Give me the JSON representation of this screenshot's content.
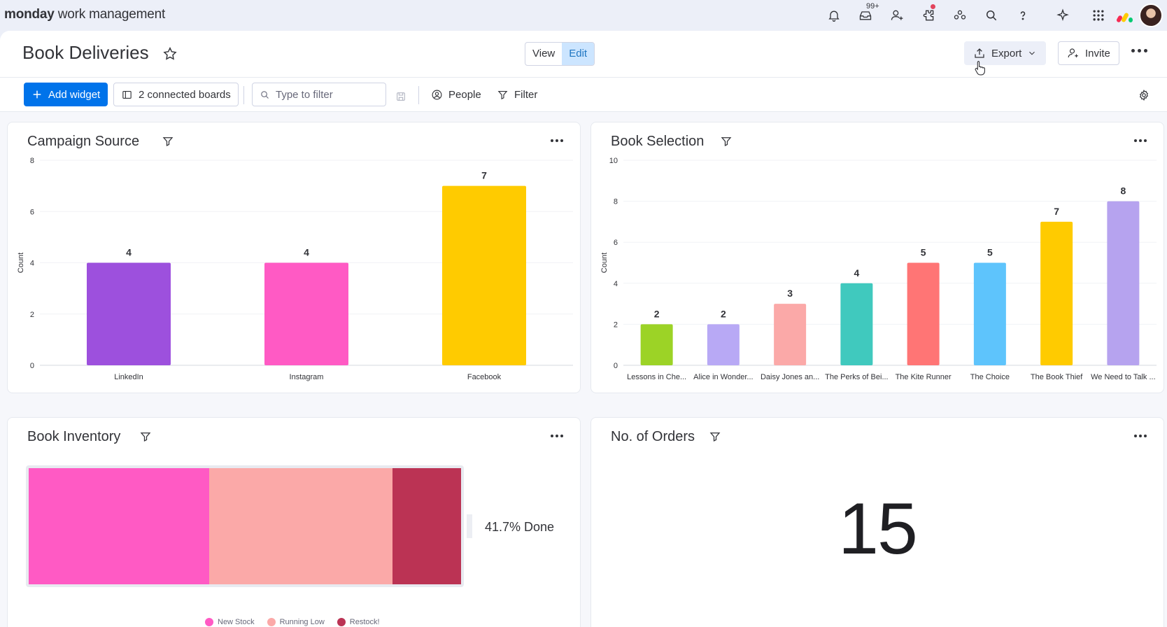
{
  "app": {
    "logo_bold": "monday",
    "logo_rest": " work management",
    "notifications_badge": "99+"
  },
  "header": {
    "title": "Book Deliveries",
    "view_label": "View",
    "edit_label": "Edit",
    "export_label": "Export",
    "invite_label": "Invite"
  },
  "toolbar": {
    "add_widget_label": "Add widget",
    "connected_boards_label": "2 connected boards",
    "filter_placeholder": "Type to filter",
    "people_label": "People",
    "filter_label": "Filter"
  },
  "widgets": {
    "campaign_source": {
      "title": "Campaign Source"
    },
    "book_selection": {
      "title": "Book Selection"
    },
    "book_inventory": {
      "title": "Book Inventory",
      "done_text": "41.7% Done",
      "segments": [
        {
          "label": "New Stock",
          "fraction": 0.417,
          "color": "#ff5ac4"
        },
        {
          "label": "Running Low",
          "fraction": 0.425,
          "color": "#fba9a8"
        },
        {
          "label": "Restock!",
          "fraction": 0.158,
          "color": "#bb3354"
        }
      ]
    },
    "orders": {
      "title": "No. of Orders",
      "value": "15"
    }
  },
  "chart_data": [
    {
      "id": "campaign_source",
      "type": "bar",
      "title": "Campaign Source",
      "ylabel": "Count",
      "ylim": [
        0,
        8
      ],
      "yticks": [
        0,
        2,
        4,
        6,
        8
      ],
      "categories": [
        "LinkedIn",
        "Instagram",
        "Facebook"
      ],
      "values": [
        4,
        4,
        7
      ],
      "colors": [
        "#9d50dd",
        "#ff5ac4",
        "#ffcb00"
      ]
    },
    {
      "id": "book_selection",
      "type": "bar",
      "title": "Book Selection",
      "ylabel": "Count",
      "ylim": [
        0,
        10
      ],
      "yticks": [
        0,
        2,
        4,
        6,
        8,
        10
      ],
      "categories": [
        "Lessons in Che...",
        "Alice in Wonder...",
        "Daisy Jones an...",
        "The Perks of Bei...",
        "The Kite Runner",
        "The Choice",
        "The Book Thief",
        "We Need to Talk ..."
      ],
      "values": [
        2,
        2,
        3,
        4,
        5,
        5,
        7,
        8
      ],
      "colors": [
        "#9cd326",
        "#b8a9f5",
        "#fba9a8",
        "#40c9be",
        "#ff7575",
        "#5ec4fc",
        "#ffcb00",
        "#b6a3ef"
      ]
    }
  ]
}
